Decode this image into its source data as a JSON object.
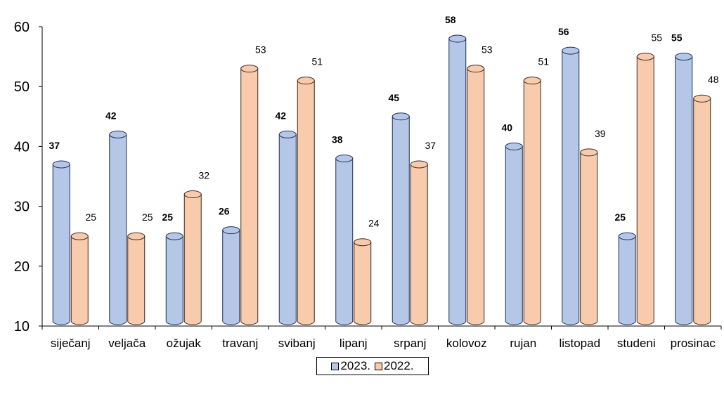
{
  "colors": {
    "series_a_fill": "#b4c7e7",
    "series_a_edge": "#1f2d5a",
    "series_b_fill": "#f8cbad",
    "series_b_edge": "#3a2a1e"
  },
  "chart_data": {
    "type": "bar",
    "style": "cylinder",
    "categories": [
      "siječanj",
      "veljača",
      "ožujak",
      "travanj",
      "svibanj",
      "lipanj",
      "srpanj",
      "kolovoz",
      "rujan",
      "listopad",
      "studeni",
      "prosinac"
    ],
    "series": [
      {
        "name": "2023.",
        "values": [
          37,
          42,
          25,
          26,
          42,
          38,
          45,
          58,
          40,
          56,
          25,
          55
        ]
      },
      {
        "name": "2022.",
        "values": [
          25,
          25,
          32,
          53,
          51,
          24,
          37,
          53,
          51,
          39,
          55,
          48
        ]
      }
    ],
    "ylim": [
      10,
      60
    ],
    "yticks": [
      10,
      20,
      30,
      40,
      50,
      60
    ],
    "grid": false,
    "legend": "bottom-center"
  }
}
